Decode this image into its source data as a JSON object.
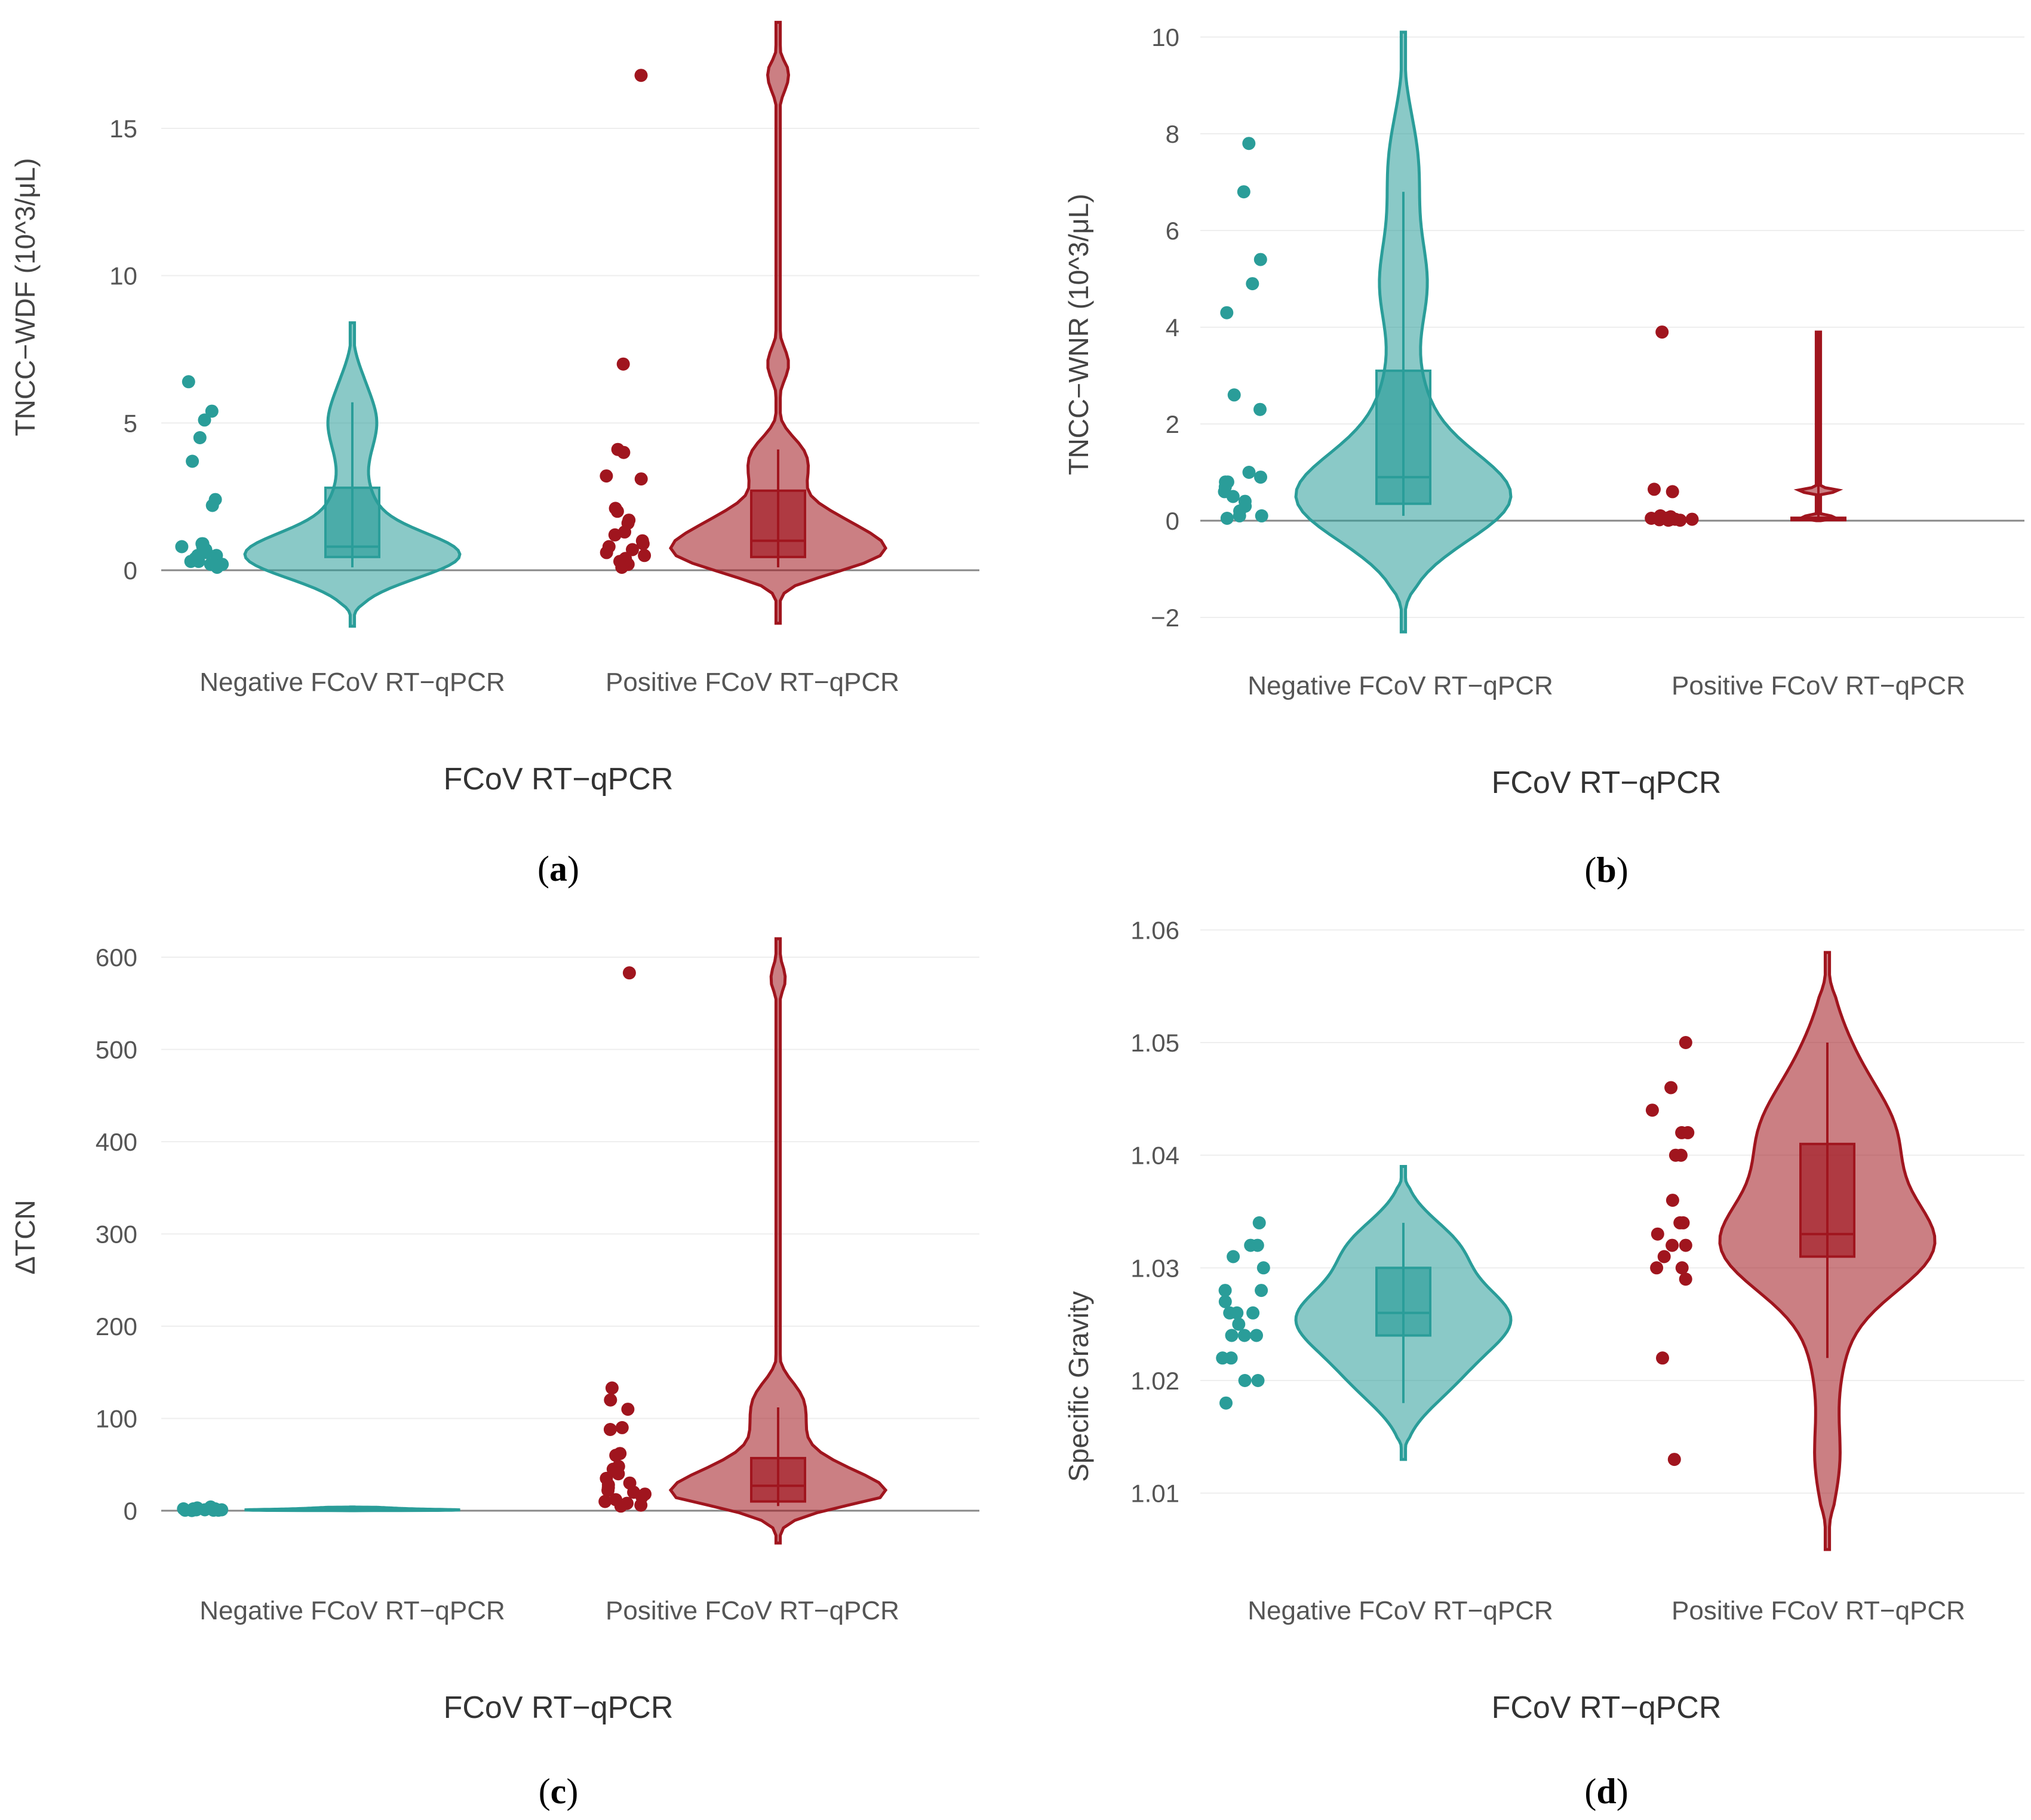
{
  "colors": {
    "negative": "#2a9d99",
    "positive": "#a0151e",
    "grid": "#eeeeee",
    "zeroline": "#888888"
  },
  "chart_data": [
    {
      "type": "violin",
      "panel_label": "a",
      "ylabel": "TNCC−WDF (10^3/μL)",
      "xlabel": "FCoV RT−qPCR",
      "categories": [
        "Negative FCoV RT−qPCR",
        "Positive FCoV RT−qPCR"
      ],
      "ylim": [
        -2,
        18.5
      ],
      "yticks": [
        0,
        5,
        10,
        15
      ],
      "zero_line": true,
      "grid": true,
      "series": [
        {
          "name": "Negative FCoV RT−qPCR",
          "points": [
            6.4,
            5.4,
            5.1,
            4.5,
            3.7,
            2.4,
            2.2,
            0.9,
            0.9,
            0.8,
            0.8,
            0.7,
            0.6,
            0.5,
            0.5,
            0.4,
            0.3,
            0.3,
            0.2,
            0.2,
            0.1
          ],
          "box": {
            "min": 0.1,
            "q1": 0.45,
            "median": 0.8,
            "q3": 2.8,
            "max": 5.7
          },
          "violin_range": [
            -1.9,
            8.4
          ]
        },
        {
          "name": "Positive FCoV RT−qPCR",
          "points": [
            16.8,
            7.0,
            4.1,
            4.0,
            3.2,
            3.1,
            2.1,
            2.0,
            1.7,
            1.6,
            1.3,
            1.2,
            1.0,
            0.9,
            0.8,
            0.7,
            0.6,
            0.5,
            0.4,
            0.3,
            0.2,
            0.1
          ],
          "box": {
            "min": 0.1,
            "q1": 0.45,
            "median": 1.0,
            "q3": 2.7,
            "max": 4.1
          },
          "violin_range": [
            -1.8,
            18.6
          ]
        }
      ]
    },
    {
      "type": "violin",
      "panel_label": "b",
      "ylabel": "TNCC−WNR (10^3/μL)",
      "xlabel": "FCoV RT−qPCR",
      "categories": [
        "Negative FCoV RT−qPCR",
        "Positive FCoV RT−qPCR"
      ],
      "ylim": [
        -2.4,
        10.5
      ],
      "yticks": [
        -2,
        0,
        2,
        4,
        6,
        8,
        10
      ],
      "zero_line": true,
      "grid": true,
      "series": [
        {
          "name": "Negative FCoV RT−qPCR",
          "points": [
            7.8,
            6.8,
            5.4,
            4.9,
            4.3,
            2.6,
            2.3,
            1.0,
            0.9,
            0.8,
            0.8,
            0.7,
            0.6,
            0.5,
            0.4,
            0.3,
            0.2,
            0.1,
            0.1,
            0.05
          ],
          "box": {
            "min": 0.1,
            "q1": 0.35,
            "median": 0.9,
            "q3": 3.1,
            "max": 6.8
          },
          "violin_range": [
            -2.3,
            10.1
          ]
        },
        {
          "name": "Positive FCoV RT−qPCR",
          "points": [
            3.9,
            0.65,
            0.6,
            0.1,
            0.08,
            0.06,
            0.05,
            0.04,
            0.03,
            0.03,
            0.02,
            0.02,
            0.01,
            0.01
          ],
          "box": {
            "min": 0.0,
            "q1": 0.01,
            "median": 0.03,
            "q3": 0.06,
            "max": 3.9
          },
          "violin_range": [
            0.0,
            3.9
          ]
        }
      ]
    },
    {
      "type": "violin",
      "panel_label": "c",
      "ylabel": "ΔTCN",
      "xlabel": "FCoV RT−qPCR",
      "categories": [
        "Negative FCoV RT−qPCR",
        "Positive FCoV RT−qPCR"
      ],
      "ylim": [
        -40,
        625
      ],
      "yticks": [
        0,
        100,
        200,
        300,
        400,
        500,
        600
      ],
      "zero_line": true,
      "grid": true,
      "series": [
        {
          "name": "Negative FCoV RT−qPCR",
          "points": [
            4,
            3,
            3,
            2,
            2,
            2,
            1,
            1,
            1,
            1,
            1,
            0.5,
            0.5,
            0.5,
            0.2
          ],
          "box": {
            "min": 0.2,
            "q1": 0.5,
            "median": 1,
            "q3": 2,
            "max": 4
          },
          "violin_range": [
            0,
            4
          ]
        },
        {
          "name": "Positive FCoV RT−qPCR",
          "points": [
            583,
            133,
            120,
            110,
            90,
            88,
            62,
            60,
            48,
            45,
            40,
            35,
            30,
            28,
            25,
            22,
            20,
            18,
            15,
            12,
            10,
            8,
            6,
            5
          ],
          "box": {
            "min": 5,
            "q1": 10,
            "median": 27,
            "q3": 57,
            "max": 112
          },
          "violin_range": [
            -35,
            620
          ]
        }
      ]
    },
    {
      "type": "violin",
      "panel_label": "d",
      "ylabel": "Specific Gravity",
      "xlabel": "FCoV RT−qPCR",
      "categories": [
        "Negative FCoV RT−qPCR",
        "Positive FCoV RT−qPCR"
      ],
      "ylim": [
        1.0045,
        1.0605
      ],
      "yticks": [
        1.01,
        1.02,
        1.03,
        1.04,
        1.05,
        1.06
      ],
      "zero_line": false,
      "grid": true,
      "series": [
        {
          "name": "Negative FCoV RT−qPCR",
          "points": [
            1.034,
            1.032,
            1.032,
            1.031,
            1.03,
            1.028,
            1.028,
            1.027,
            1.026,
            1.026,
            1.026,
            1.025,
            1.024,
            1.024,
            1.024,
            1.022,
            1.022,
            1.02,
            1.02,
            1.018
          ],
          "box": {
            "min": 1.018,
            "q1": 1.024,
            "median": 1.026,
            "q3": 1.03,
            "max": 1.034
          },
          "violin_range": [
            1.013,
            1.039
          ]
        },
        {
          "name": "Positive FCoV RT−qPCR",
          "points": [
            1.05,
            1.046,
            1.044,
            1.042,
            1.042,
            1.04,
            1.04,
            1.036,
            1.034,
            1.034,
            1.033,
            1.032,
            1.032,
            1.031,
            1.03,
            1.03,
            1.029,
            1.022,
            1.013
          ],
          "box": {
            "min": 1.022,
            "q1": 1.031,
            "median": 1.033,
            "q3": 1.041,
            "max": 1.05
          },
          "violin_range": [
            1.005,
            1.058
          ]
        }
      ]
    }
  ]
}
